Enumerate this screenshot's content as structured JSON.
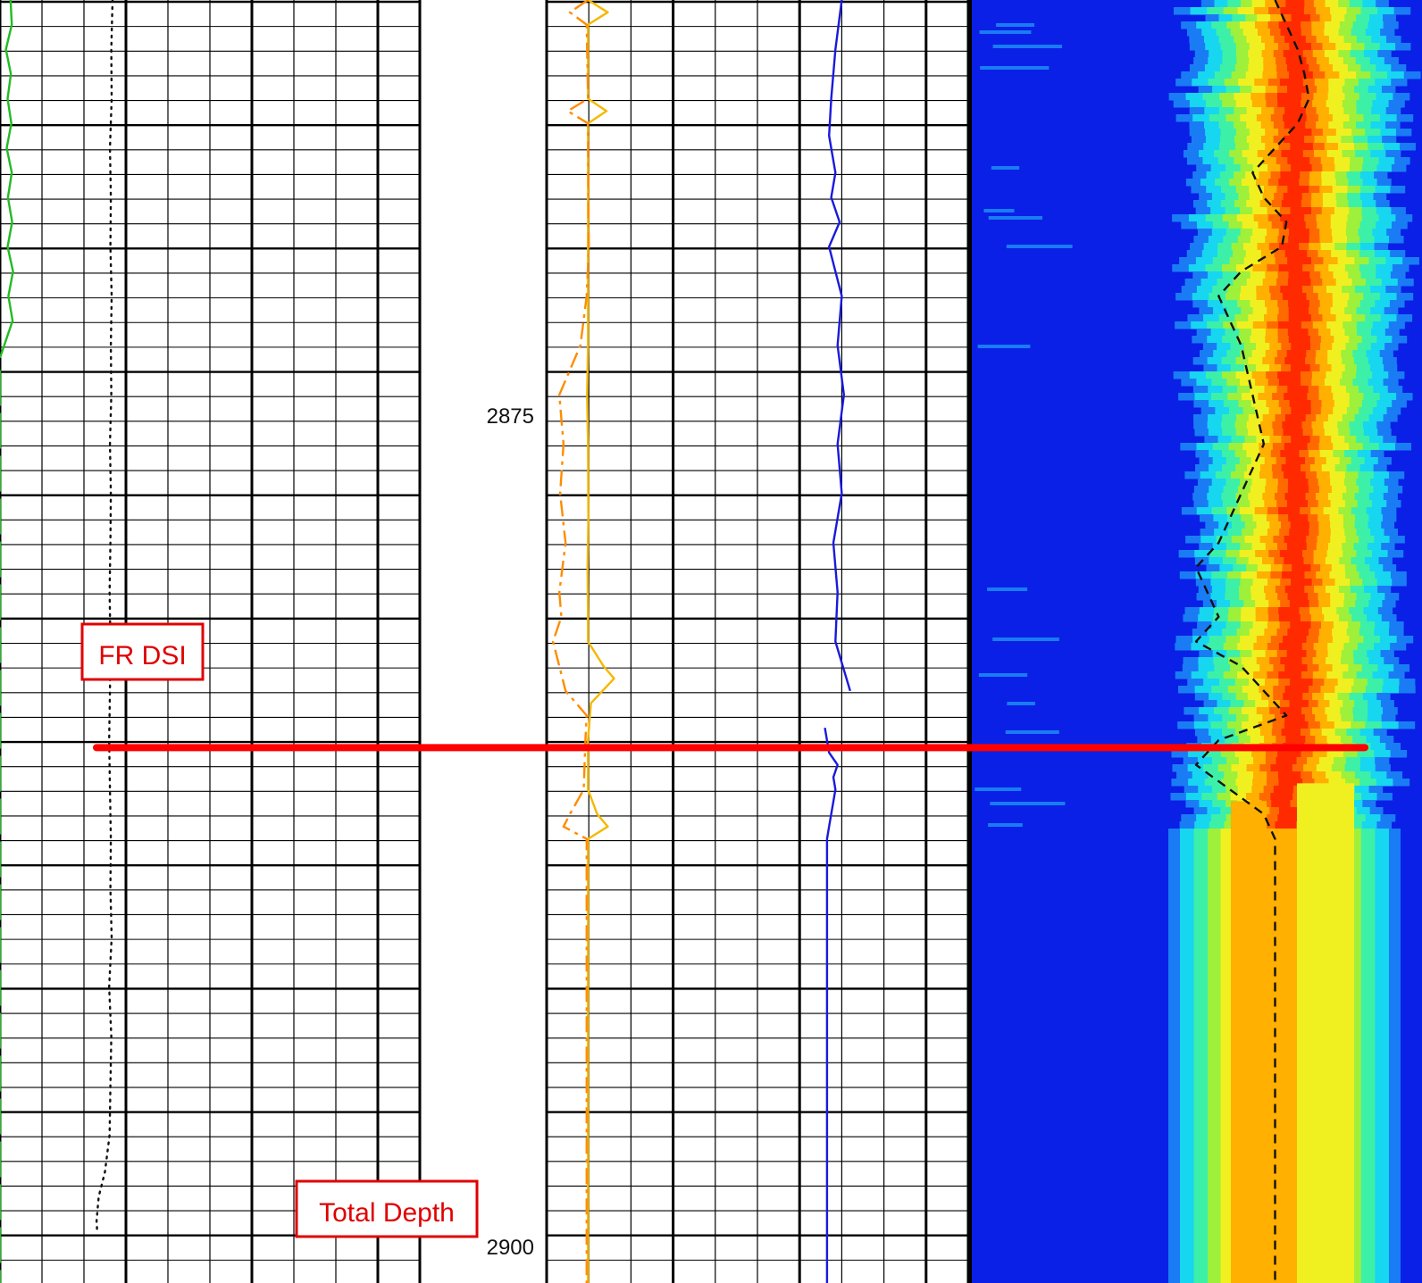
{
  "chart_data": {
    "type": "line",
    "title": "",
    "depth_range": [
      2850,
      2902
    ],
    "depth_ticks": [
      {
        "depth": 2875,
        "label": "2875"
      },
      {
        "depth": 2900,
        "label": "2900"
      }
    ],
    "annotations": [
      {
        "text": "FR DSI",
        "depth": 2882.5
      },
      {
        "text": "Total Depth",
        "depth": 2899.5
      }
    ],
    "marker_line": {
      "depth": 2880.3,
      "color": "#ff0000"
    },
    "series": [
      {
        "track": 1,
        "color": "#22bb22",
        "dash": "solid",
        "stop_depth": 2864.5,
        "points": [
          [
            2850,
            0.25
          ],
          [
            2851,
            0.28
          ],
          [
            2852,
            0.14
          ],
          [
            2853,
            0.26
          ],
          [
            2854,
            0.18
          ],
          [
            2855,
            0.27
          ],
          [
            2856,
            0.16
          ],
          [
            2857,
            0.28
          ],
          [
            2858,
            0.19
          ],
          [
            2859,
            0.29
          ],
          [
            2860,
            0.18
          ],
          [
            2861,
            0.31
          ],
          [
            2862,
            0.2
          ],
          [
            2863,
            0.3
          ],
          [
            2864,
            0.1
          ],
          [
            2864.5,
            0.0
          ]
        ]
      },
      {
        "track": 1,
        "color": "#22bb22",
        "dash": "long",
        "start_depth": 2865,
        "points": [
          [
            2865,
            0.0
          ],
          [
            2902,
            0.0
          ]
        ]
      },
      {
        "track": 1,
        "color": "#111111",
        "dash": "dot",
        "points": [
          [
            2850,
            2.68
          ],
          [
            2852,
            2.65
          ],
          [
            2854,
            2.66
          ],
          [
            2856,
            2.62
          ],
          [
            2858,
            2.64
          ],
          [
            2860,
            2.63
          ],
          [
            2862,
            2.66
          ],
          [
            2864,
            2.64
          ],
          [
            2866,
            2.65
          ],
          [
            2868,
            2.62
          ],
          [
            2870,
            2.64
          ],
          [
            2872,
            2.63
          ],
          [
            2874,
            2.61
          ],
          [
            2876,
            2.63
          ],
          [
            2878,
            2.62
          ],
          [
            2880,
            2.6
          ],
          [
            2882,
            2.62
          ],
          [
            2884,
            2.64
          ],
          [
            2886,
            2.63
          ],
          [
            2888,
            2.66
          ],
          [
            2890,
            2.6
          ],
          [
            2892,
            2.65
          ],
          [
            2894,
            2.63
          ],
          [
            2896,
            2.61
          ],
          [
            2897.5,
            2.5
          ],
          [
            2898.5,
            2.35
          ],
          [
            2899.5,
            2.3
          ],
          [
            2900,
            2.32
          ]
        ]
      },
      {
        "track": 2,
        "color": "#f5b800",
        "dash": "solid",
        "points": [
          [
            2850,
            0.98
          ],
          [
            2850.5,
            1.45
          ],
          [
            2851,
            0.98
          ],
          [
            2854,
            0.98
          ],
          [
            2854.5,
            1.42
          ],
          [
            2855,
            0.98
          ],
          [
            2864,
            0.98
          ],
          [
            2866,
            0.96
          ],
          [
            2868,
            0.98
          ],
          [
            2871,
            0.99
          ],
          [
            2873,
            0.97
          ],
          [
            2875,
            0.98
          ],
          [
            2876,
            0.98
          ],
          [
            2877,
            1.35
          ],
          [
            2877.5,
            1.6
          ],
          [
            2878.5,
            1.05
          ],
          [
            2880,
            0.98
          ],
          [
            2881,
            0.98
          ],
          [
            2882,
            0.98
          ],
          [
            2883,
            1.2
          ],
          [
            2883.5,
            1.45
          ],
          [
            2884,
            0.98
          ],
          [
            2902,
            0.98
          ]
        ]
      },
      {
        "track": 2,
        "color": "#ff8c00",
        "dash": "dashdot",
        "points": [
          [
            2850,
            0.98
          ],
          [
            2850.5,
            0.55
          ],
          [
            2851,
            0.95
          ],
          [
            2854,
            0.98
          ],
          [
            2854.5,
            0.5
          ],
          [
            2855,
            0.98
          ],
          [
            2860,
            1.0
          ],
          [
            2862,
            0.95
          ],
          [
            2864,
            0.8
          ],
          [
            2866,
            0.3
          ],
          [
            2868,
            0.4
          ],
          [
            2870,
            0.32
          ],
          [
            2872,
            0.45
          ],
          [
            2874,
            0.3
          ],
          [
            2875,
            0.35
          ],
          [
            2876,
            0.15
          ],
          [
            2877,
            0.3
          ],
          [
            2878,
            0.45
          ],
          [
            2879,
            0.95
          ],
          [
            2880,
            0.92
          ],
          [
            2882,
            0.88
          ],
          [
            2883,
            0.55
          ],
          [
            2883.5,
            0.4
          ],
          [
            2884,
            0.95
          ],
          [
            2902,
            0.95
          ]
        ]
      },
      {
        "track": 2,
        "color": "#1a1adc",
        "dash": "solid",
        "break": [
          2878,
          2879.5
        ],
        "points": [
          [
            2850,
            7.0
          ],
          [
            2852,
            6.85
          ],
          [
            2854,
            6.75
          ],
          [
            2855.5,
            6.7
          ],
          [
            2857,
            6.85
          ],
          [
            2858,
            6.75
          ],
          [
            2859,
            6.95
          ],
          [
            2860,
            6.7
          ],
          [
            2861,
            6.85
          ],
          [
            2862,
            7.0
          ],
          [
            2864,
            6.9
          ],
          [
            2866,
            7.05
          ],
          [
            2868,
            6.9
          ],
          [
            2870,
            7.0
          ],
          [
            2872,
            6.8
          ],
          [
            2874,
            6.9
          ],
          [
            2876,
            6.85
          ],
          [
            2878,
            7.2
          ]
        ]
      },
      {
        "track": 2,
        "color": "#1a1adc",
        "dash": "solid",
        "points": [
          [
            2879.5,
            6.6
          ],
          [
            2880.5,
            6.7
          ],
          [
            2881,
            6.9
          ],
          [
            2881.5,
            6.8
          ],
          [
            2882,
            6.85
          ],
          [
            2883.5,
            6.7
          ],
          [
            2884,
            6.65
          ],
          [
            2902,
            6.65
          ]
        ]
      },
      {
        "track": 3,
        "color": "#111111",
        "dash": "dash",
        "points": [
          [
            2850,
            1.35
          ],
          [
            2851,
            1.4
          ],
          [
            2852,
            1.45
          ],
          [
            2853,
            1.48
          ],
          [
            2854,
            1.5
          ],
          [
            2855,
            1.45
          ],
          [
            2856,
            1.35
          ],
          [
            2857,
            1.25
          ],
          [
            2858,
            1.3
          ],
          [
            2859,
            1.4
          ],
          [
            2860,
            1.38
          ],
          [
            2861,
            1.2
          ],
          [
            2862,
            1.1
          ],
          [
            2863,
            1.15
          ],
          [
            2864,
            1.2
          ],
          [
            2866,
            1.25
          ],
          [
            2868,
            1.3
          ],
          [
            2870,
            1.2
          ],
          [
            2871,
            1.15
          ],
          [
            2872,
            1.1
          ],
          [
            2873,
            1.0
          ],
          [
            2874,
            1.05
          ],
          [
            2875,
            1.1
          ],
          [
            2876,
            1.0
          ],
          [
            2877,
            1.2
          ],
          [
            2878,
            1.3
          ],
          [
            2879,
            1.4
          ],
          [
            2880,
            1.1
          ],
          [
            2881,
            1.0
          ],
          [
            2882,
            1.15
          ],
          [
            2883,
            1.3
          ],
          [
            2884,
            1.35
          ],
          [
            2902,
            1.35
          ]
        ]
      }
    ]
  },
  "colors": {
    "grid": "#000000",
    "spectrum_bg": "#0a20e6",
    "marker": "#ff0000",
    "annotation": "#e00000"
  }
}
